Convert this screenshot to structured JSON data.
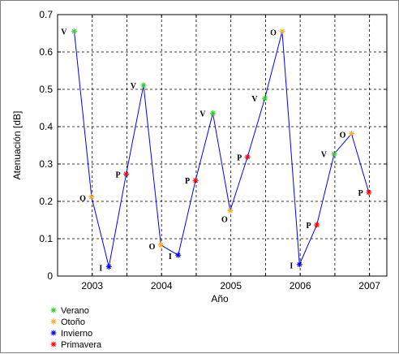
{
  "chart_data": {
    "type": "line",
    "xlabel": "Año",
    "ylabel": "Atenuación [dB]",
    "xlim": [
      2002.5,
      2007.25
    ],
    "ylim": [
      0,
      0.7
    ],
    "xticks": [
      {
        "value": 2003,
        "label": "2003"
      },
      {
        "value": 2004,
        "label": "2004"
      },
      {
        "value": 2005,
        "label": "2005"
      },
      {
        "value": 2006,
        "label": "2006"
      },
      {
        "value": 2007,
        "label": "2007"
      }
    ],
    "yticks": [
      {
        "value": 0,
        "label": "0"
      },
      {
        "value": 0.1,
        "label": "0.1"
      },
      {
        "value": 0.2,
        "label": "0.2"
      },
      {
        "value": 0.3,
        "label": "0.3"
      },
      {
        "value": 0.4,
        "label": "0.4"
      },
      {
        "value": 0.5,
        "label": "0.5"
      },
      {
        "value": 0.6,
        "label": "0.6"
      },
      {
        "value": 0.7,
        "label": "0.7"
      }
    ],
    "grid": true,
    "gridlines_x": [
      2003,
      2003.5,
      2004,
      2004.5,
      2005,
      2005.5,
      2006,
      2006.5,
      2007
    ],
    "line_color": "#0000ff",
    "legend_placement": "bottom-left",
    "series_legend": [
      {
        "name": "Verano",
        "code": "V",
        "color": "#33cc33"
      },
      {
        "name": "Otoño",
        "code": "O",
        "color": "#ffaa22"
      },
      {
        "name": "Invierno",
        "code": "I",
        "color": "#0000ff"
      },
      {
        "name": "Primavera",
        "code": "P",
        "color": "#ff0000"
      }
    ],
    "points": [
      {
        "x": 2002.74,
        "y": 0.655,
        "season": "V",
        "label": "V"
      },
      {
        "x": 2002.99,
        "y": 0.212,
        "season": "O",
        "label": "O"
      },
      {
        "x": 2003.24,
        "y": 0.025,
        "season": "I",
        "label": "I"
      },
      {
        "x": 2003.49,
        "y": 0.273,
        "season": "P",
        "label": "P"
      },
      {
        "x": 2003.74,
        "y": 0.511,
        "season": "V",
        "label": "V"
      },
      {
        "x": 2003.99,
        "y": 0.083,
        "season": "O",
        "label": "O"
      },
      {
        "x": 2004.24,
        "y": 0.056,
        "season": "I",
        "label": "I"
      },
      {
        "x": 2004.49,
        "y": 0.256,
        "season": "P",
        "label": "P"
      },
      {
        "x": 2004.74,
        "y": 0.436,
        "season": "V",
        "label": "V"
      },
      {
        "x": 2004.99,
        "y": 0.175,
        "season": "O",
        "label": "O"
      },
      {
        "x": 2005.24,
        "y": 0.319,
        "season": "P",
        "label": "P"
      },
      {
        "x": 2005.49,
        "y": 0.476,
        "season": "V",
        "label": "V"
      },
      {
        "x": 2005.74,
        "y": 0.655,
        "season": "O",
        "label": "O"
      },
      {
        "x": 2005.99,
        "y": 0.031,
        "season": "I",
        "label": "I"
      },
      {
        "x": 2006.24,
        "y": 0.137,
        "season": "P",
        "label": "P"
      },
      {
        "x": 2006.49,
        "y": 0.327,
        "season": "V",
        "label": "V"
      },
      {
        "x": 2006.74,
        "y": 0.381,
        "season": "O",
        "label": "O"
      },
      {
        "x": 2006.99,
        "y": 0.224,
        "season": "P",
        "label": "P"
      }
    ]
  }
}
